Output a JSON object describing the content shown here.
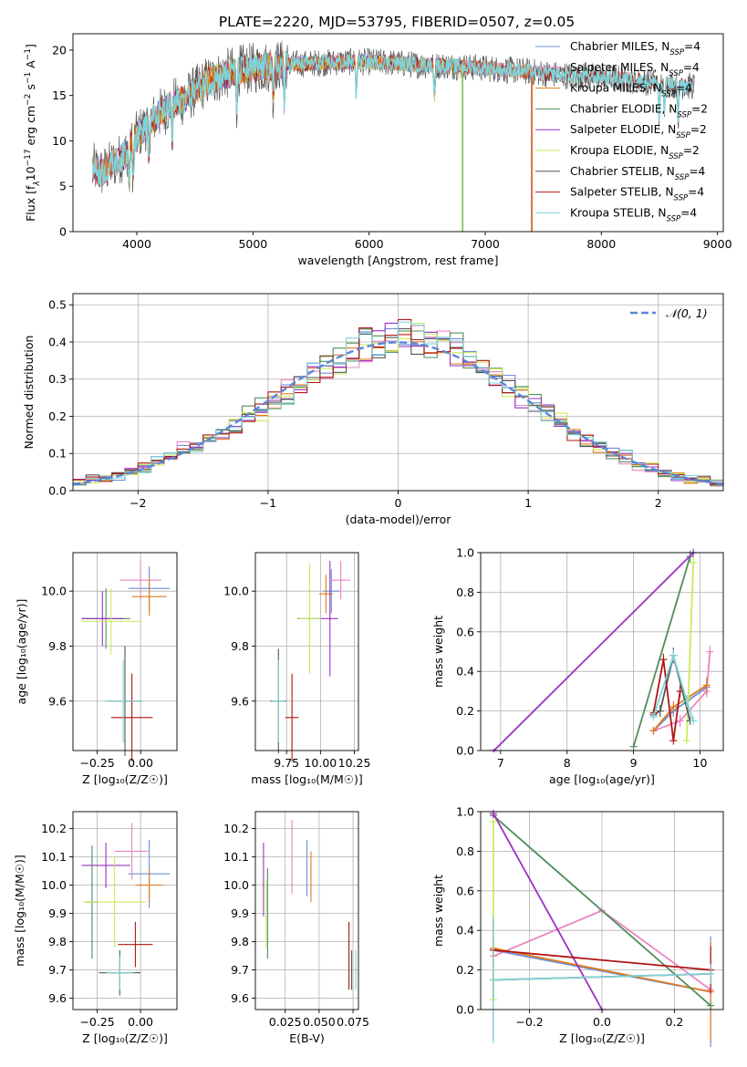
{
  "title": "PLATE=2220, MJD=53795, FIBERID=0507, z=0.05",
  "colors": {
    "ChabrierMILES": "#6b8fd6",
    "SalpeterMILES": "#e985c1",
    "KroupaMILES": "#e07b1f",
    "ChabrierELODIE": "#4f8f5c",
    "SalpeterELODIE": "#9a31c4",
    "KroupaELODIE": "#c9ec5a",
    "ChabrierSTELIB": "#555555",
    "SalpeterSTELIB": "#b01515",
    "KroupaSTELIB": "#7fd3d8",
    "normal": "#5b86d9"
  },
  "legend_models": [
    {
      "key": "ChabrierMILES",
      "label": "Chabrier MILES, N",
      "sub": "SSP",
      "suffix": "=4"
    },
    {
      "key": "SalpeterMILES",
      "label": "Salpeter MILES, N",
      "sub": "SSP",
      "suffix": "=4"
    },
    {
      "key": "KroupaMILES",
      "label": "Kroupa MILES, N",
      "sub": "SSP",
      "suffix": "=4"
    },
    {
      "key": "ChabrierELODIE",
      "label": "Chabrier ELODIE, N",
      "sub": "SSP",
      "suffix": "=2"
    },
    {
      "key": "SalpeterELODIE",
      "label": "Salpeter ELODIE, N",
      "sub": "SSP",
      "suffix": "=2"
    },
    {
      "key": "KroupaELODIE",
      "label": "Kroupa ELODIE, N",
      "sub": "SSP",
      "suffix": "=2"
    },
    {
      "key": "ChabrierSTELIB",
      "label": "Chabrier STELIB, N",
      "sub": "SSP",
      "suffix": "=4"
    },
    {
      "key": "SalpeterSTELIB",
      "label": "Salpeter STELIB, N",
      "sub": "SSP",
      "suffix": "=4"
    },
    {
      "key": "KroupaSTELIB",
      "label": "Kroupa STELIB, N",
      "sub": "SSP",
      "suffix": "=4"
    }
  ],
  "chart_data": [
    {
      "id": "spectrum",
      "type": "line",
      "xlabel": "wavelength [Angstrom, rest frame]",
      "ylabel": "Flux [f",
      "ylabel_parts": [
        "Flux [f",
        "λ",
        "10",
        "−17",
        " erg cm",
        "−2",
        " s",
        "−1",
        " A",
        "−1",
        "]"
      ],
      "xlim": [
        3450,
        9050
      ],
      "ylim": [
        0,
        21.8
      ],
      "xticks": [
        4000,
        5000,
        6000,
        7000,
        8000,
        9000
      ],
      "yticks": [
        0,
        5,
        10,
        15,
        20
      ],
      "grid": false,
      "legend": "top-right",
      "continuum": {
        "x": [
          3620,
          3700,
          3800,
          3900,
          4000,
          4100,
          4200,
          4300,
          4400,
          4500,
          4600,
          4700,
          4800,
          4900,
          5000,
          5200,
          5400,
          5600,
          5800,
          6000,
          6200,
          6400,
          6600,
          6800,
          7000,
          7200,
          7400,
          7600,
          7800,
          8000,
          8200,
          8400,
          8600,
          8800
        ],
        "y": [
          7,
          6.5,
          7.5,
          8.5,
          10.5,
          12,
          13,
          14,
          14.5,
          15.5,
          16.5,
          17,
          17.5,
          17.8,
          18,
          18.3,
          18.5,
          18.6,
          18.7,
          18.7,
          18.6,
          18.4,
          18.3,
          18.2,
          18.0,
          17.8,
          17.6,
          17.3,
          17.1,
          17.0,
          16.8,
          16.5,
          16.2,
          16.0
        ]
      },
      "absorption_lines": [
        3934,
        3968,
        4102,
        4304,
        4861,
        5175,
        5270,
        5890,
        6563,
        8498,
        8542,
        8662
      ],
      "noise": 1.2,
      "series_ranges": [
        {
          "key": "ChabrierMILES",
          "x": [
            3620,
            7400
          ]
        },
        {
          "key": "SalpeterMILES",
          "x": [
            3620,
            7400
          ]
        },
        {
          "key": "KroupaMILES",
          "x": [
            3620,
            7400
          ]
        },
        {
          "key": "ChabrierELODIE",
          "x": [
            3900,
            6800
          ]
        },
        {
          "key": "SalpeterELODIE",
          "x": [
            3900,
            6800
          ]
        },
        {
          "key": "KroupaELODIE",
          "x": [
            3900,
            6800
          ]
        },
        {
          "key": "ChabrierSTELIB",
          "x": [
            3620,
            8800
          ]
        },
        {
          "key": "SalpeterSTELIB",
          "x": [
            3620,
            8800
          ]
        },
        {
          "key": "KroupaSTELIB",
          "x": [
            3620,
            8800
          ]
        }
      ]
    },
    {
      "id": "residual_hist",
      "type": "step",
      "xlabel": "(data-model)/error",
      "ylabel": "Normed distribution",
      "xlim": [
        -2.5,
        2.5
      ],
      "ylim": [
        0,
        0.53
      ],
      "xticks": [
        -2,
        -1,
        0,
        1,
        2
      ],
      "yticks": [
        0.0,
        0.1,
        0.2,
        0.3,
        0.4,
        0.5
      ],
      "grid": true,
      "legend": "top-right",
      "normal_label": "𝒩(0, 1)",
      "bin_edges_start": -2.5,
      "bin_width": 0.1,
      "base_hist": [
        0.022,
        0.03,
        0.03,
        0.04,
        0.05,
        0.06,
        0.08,
        0.09,
        0.11,
        0.12,
        0.14,
        0.16,
        0.18,
        0.2,
        0.22,
        0.25,
        0.27,
        0.29,
        0.31,
        0.33,
        0.35,
        0.37,
        0.39,
        0.4,
        0.41,
        0.42,
        0.41,
        0.4,
        0.39,
        0.38,
        0.36,
        0.33,
        0.31,
        0.28,
        0.26,
        0.23,
        0.21,
        0.18,
        0.16,
        0.14,
        0.12,
        0.1,
        0.09,
        0.07,
        0.06,
        0.05,
        0.04,
        0.03,
        0.03,
        0.022
      ],
      "series_keys": [
        "ChabrierMILES",
        "SalpeterMILES",
        "KroupaMILES",
        "ChabrierELODIE",
        "SalpeterELODIE",
        "KroupaELODIE",
        "ChabrierSTELIB",
        "SalpeterSTELIB",
        "KroupaSTELIB"
      ]
    },
    {
      "id": "age_vs_Z",
      "type": "errorbar",
      "xlabel": "Z [log₁₀(Z/Z☉)]",
      "ylabel": "age  [log₁₀(age/yr)]",
      "xlim": [
        -0.39,
        0.21
      ],
      "ylim": [
        9.42,
        10.14
      ],
      "xticks": [
        -0.25,
        0.0
      ],
      "xtick_labels": [
        "−0.25",
        "0.00"
      ],
      "yticks": [
        9.6,
        9.8,
        10.0
      ],
      "grid": true,
      "points": [
        {
          "key": "ChabrierMILES",
          "x": 0.05,
          "y": 10.01,
          "xerr": 0.12,
          "yerr": 0.08
        },
        {
          "key": "SalpeterMILES",
          "x": 0.0,
          "y": 10.04,
          "xerr": 0.12,
          "yerr": 0.07
        },
        {
          "key": "KroupaMILES",
          "x": 0.05,
          "y": 9.98,
          "xerr": 0.1,
          "yerr": 0.07
        },
        {
          "key": "ChabrierELODIE",
          "x": -0.2,
          "y": 9.9,
          "xerr": 0.14,
          "yerr": 0.11
        },
        {
          "key": "SalpeterELODIE",
          "x": -0.22,
          "y": 9.9,
          "xerr": 0.12,
          "yerr": 0.1
        },
        {
          "key": "KroupaELODIE",
          "x": -0.17,
          "y": 9.89,
          "xerr": 0.17,
          "yerr": 0.12
        },
        {
          "key": "ChabrierSTELIB",
          "x": -0.09,
          "y": 9.6,
          "xerr": 0.1,
          "yerr": 0.2
        },
        {
          "key": "SalpeterSTELIB",
          "x": -0.05,
          "y": 9.54,
          "xerr": 0.12,
          "yerr": 0.16
        },
        {
          "key": "KroupaSTELIB",
          "x": -0.1,
          "y": 9.6,
          "xerr": 0.11,
          "yerr": 0.15
        }
      ]
    },
    {
      "id": "age_vs_mass",
      "type": "errorbar",
      "xlabel": "mass [log₁₀(M/M☉)]",
      "ylabel": "",
      "xlim": [
        9.52,
        10.28
      ],
      "ylim": [
        9.42,
        10.14
      ],
      "xticks": [
        9.75,
        10.0,
        10.25
      ],
      "xtick_labels": [
        "9.75",
        "10.00",
        "10.25"
      ],
      "yticks": [
        9.6,
        9.8,
        10.0
      ],
      "grid": true,
      "points": [
        {
          "key": "ChabrierMILES",
          "x": 10.08,
          "y": 10.0,
          "xerr": 0.06,
          "yerr": 0.08
        },
        {
          "key": "SalpeterMILES",
          "x": 10.15,
          "y": 10.04,
          "xerr": 0.07,
          "yerr": 0.07
        },
        {
          "key": "KroupaMILES",
          "x": 10.04,
          "y": 9.99,
          "xerr": 0.05,
          "yerr": 0.07
        },
        {
          "key": "ChabrierELODIE",
          "x": 9.92,
          "y": 9.9,
          "xerr": 0.09,
          "yerr": 0.11
        },
        {
          "key": "SalpeterELODIE",
          "x": 10.07,
          "y": 9.9,
          "xerr": 0.06,
          "yerr": 0.21
        },
        {
          "key": "KroupaELODIE",
          "x": 9.92,
          "y": 9.9,
          "xerr": 0.08,
          "yerr": 0.2
        },
        {
          "key": "ChabrierSTELIB",
          "x": 9.69,
          "y": 9.6,
          "xerr": 0.06,
          "yerr": 0.19
        },
        {
          "key": "SalpeterSTELIB",
          "x": 9.79,
          "y": 9.54,
          "xerr": 0.05,
          "yerr": 0.16
        },
        {
          "key": "KroupaSTELIB",
          "x": 9.69,
          "y": 9.6,
          "xerr": 0.05,
          "yerr": 0.15
        }
      ]
    },
    {
      "id": "mass_weight_vs_age",
      "type": "line",
      "xlabel": "age  [log₁₀(age/yr)]",
      "ylabel": "mass weight",
      "xlim": [
        6.7,
        10.35
      ],
      "ylim": [
        0.0,
        1.0
      ],
      "xticks": [
        7,
        8,
        9,
        10
      ],
      "yticks": [
        0.0,
        0.2,
        0.4,
        0.6,
        0.8,
        1.0
      ],
      "grid": true,
      "series": [
        {
          "key": "ChabrierMILES",
          "x": [
            9.3,
            9.6,
            10.1
          ],
          "y": [
            0.1,
            0.2,
            0.32
          ],
          "yerr": [
            0.02,
            0.03,
            0.04
          ]
        },
        {
          "key": "SalpeterMILES",
          "x": [
            9.3,
            9.7,
            10.1,
            10.15
          ],
          "y": [
            0.1,
            0.15,
            0.3,
            0.5
          ],
          "yerr": [
            0.02,
            0.03,
            0.03,
            0.03
          ]
        },
        {
          "key": "KroupaMILES",
          "x": [
            9.3,
            9.6,
            10.1
          ],
          "y": [
            0.1,
            0.22,
            0.33
          ],
          "yerr": [
            0.02,
            0.03,
            0.04
          ]
        },
        {
          "key": "ChabrierELODIE",
          "x": [
            9.0,
            9.85
          ],
          "y": [
            0.02,
            0.98
          ],
          "yerr": [
            0.02,
            0.03
          ]
        },
        {
          "key": "SalpeterELODIE",
          "x": [
            6.9,
            9.9
          ],
          "y": [
            0.0,
            1.0
          ],
          "yerr": [
            0.01,
            0.02
          ]
        },
        {
          "key": "KroupaELODIE",
          "x": [
            9.8,
            9.9
          ],
          "y": [
            0.05,
            0.95
          ],
          "yerr": [
            0.02,
            0.03
          ]
        },
        {
          "key": "ChabrierSTELIB",
          "x": [
            9.3,
            9.4,
            9.6,
            9.85
          ],
          "y": [
            0.18,
            0.2,
            0.48,
            0.15
          ],
          "yerr": [
            0.02,
            0.03,
            0.04,
            0.02
          ]
        },
        {
          "key": "SalpeterSTELIB",
          "x": [
            9.3,
            9.45,
            9.6,
            9.7
          ],
          "y": [
            0.19,
            0.46,
            0.05,
            0.3
          ],
          "yerr": [
            0.02,
            0.03,
            0.02,
            0.03
          ]
        },
        {
          "key": "KroupaSTELIB",
          "x": [
            9.3,
            9.6,
            9.8,
            9.9
          ],
          "y": [
            0.17,
            0.48,
            0.25,
            0.15
          ],
          "yerr": [
            0.02,
            0.03,
            0.03,
            0.02
          ]
        }
      ]
    },
    {
      "id": "mass_vs_Z",
      "type": "errorbar",
      "xlabel": "Z [log₁₀(Z/Z☉)]",
      "ylabel": "mass [log₁₀(M/M☉)]",
      "xlim": [
        -0.39,
        0.21
      ],
      "ylim": [
        9.56,
        10.26
      ],
      "xticks": [
        -0.25,
        0.0
      ],
      "xtick_labels": [
        "−0.25",
        "0.00"
      ],
      "yticks": [
        9.6,
        9.7,
        9.8,
        9.9,
        10.0,
        10.1,
        10.2
      ],
      "grid": true,
      "points": [
        {
          "key": "ChabrierMILES",
          "x": 0.05,
          "y": 10.04,
          "xerr": 0.12,
          "yerr": 0.12
        },
        {
          "key": "SalpeterMILES",
          "x": -0.05,
          "y": 10.12,
          "xerr": 0.1,
          "yerr": 0.1
        },
        {
          "key": "KroupaMILES",
          "x": 0.05,
          "y": 10.0,
          "xerr": 0.08,
          "yerr": 0.06
        },
        {
          "key": "ChabrierELODIE",
          "x": -0.28,
          "y": 9.94,
          "xerr": 0.04,
          "yerr": 0.2
        },
        {
          "key": "SalpeterELODIE",
          "x": -0.2,
          "y": 10.07,
          "xerr": 0.14,
          "yerr": 0.08
        },
        {
          "key": "KroupaELODIE",
          "x": -0.15,
          "y": 9.94,
          "xerr": 0.18,
          "yerr": 0.16
        },
        {
          "key": "ChabrierSTELIB",
          "x": -0.12,
          "y": 9.69,
          "xerr": 0.12,
          "yerr": 0.08
        },
        {
          "key": "SalpeterSTELIB",
          "x": -0.03,
          "y": 9.79,
          "xerr": 0.1,
          "yerr": 0.08
        },
        {
          "key": "KroupaSTELIB",
          "x": -0.12,
          "y": 9.69,
          "xerr": 0.08,
          "yerr": 0.06
        }
      ]
    },
    {
      "id": "mass_vs_ebv",
      "type": "errorbar",
      "xlabel": "E(B-V)",
      "ylabel": "",
      "xlim": [
        0.003,
        0.079
      ],
      "ylim": [
        9.56,
        10.26
      ],
      "xticks": [
        0.025,
        0.05,
        0.075
      ],
      "xtick_labels": [
        "0.025",
        "0.050",
        "0.075"
      ],
      "yticks": [
        9.6,
        9.7,
        9.8,
        9.9,
        10.0,
        10.1,
        10.2
      ],
      "grid": true,
      "points": [
        {
          "key": "ChabrierMILES",
          "x": 0.041,
          "y": 10.06,
          "xerr": 0.0,
          "yerr": 0.1
        },
        {
          "key": "SalpeterMILES",
          "x": 0.03,
          "y": 10.1,
          "xerr": 0.0,
          "yerr": 0.13
        },
        {
          "key": "KroupaMILES",
          "x": 0.044,
          "y": 10.03,
          "xerr": 0.0,
          "yerr": 0.09
        },
        {
          "key": "ChabrierELODIE",
          "x": 0.012,
          "y": 9.9,
          "xerr": 0.0,
          "yerr": 0.16
        },
        {
          "key": "SalpeterELODIE",
          "x": 0.009,
          "y": 10.02,
          "xerr": 0.0,
          "yerr": 0.13
        },
        {
          "key": "KroupaELODIE",
          "x": 0.011,
          "y": 9.9,
          "xerr": 0.0,
          "yerr": 0.12
        },
        {
          "key": "ChabrierSTELIB",
          "x": 0.074,
          "y": 9.7,
          "xerr": 0.0,
          "yerr": 0.07
        },
        {
          "key": "SalpeterSTELIB",
          "x": 0.072,
          "y": 9.75,
          "xerr": 0.0,
          "yerr": 0.12
        },
        {
          "key": "KroupaSTELIB",
          "x": 0.077,
          "y": 9.7,
          "xerr": 0.0,
          "yerr": 0.07
        }
      ]
    },
    {
      "id": "mass_weight_vs_Z",
      "type": "line",
      "xlabel": "Z [log₁₀(Z/Z☉)]",
      "ylabel": "mass weight",
      "xlim": [
        -0.335,
        0.335
      ],
      "ylim": [
        0.0,
        1.0
      ],
      "xticks": [
        -0.2,
        0.0,
        0.2
      ],
      "xtick_labels": [
        "−0.2",
        "0.0",
        "0.2"
      ],
      "yticks": [
        0.0,
        0.2,
        0.4,
        0.6,
        0.8,
        1.0
      ],
      "grid": true,
      "series": [
        {
          "key": "ChabrierMILES",
          "x": [
            -0.3,
            0.3
          ],
          "y": [
            0.3,
            0.09
          ],
          "yerr": [
            0.18,
            0.28
          ]
        },
        {
          "key": "SalpeterMILES",
          "x": [
            -0.3,
            0.0,
            0.3
          ],
          "y": [
            0.27,
            0.5,
            0.1
          ],
          "yerr": [
            0.05,
            0.02,
            0.05
          ]
        },
        {
          "key": "KroupaMILES",
          "x": [
            -0.3,
            0.3
          ],
          "y": [
            0.31,
            0.09
          ],
          "yerr": [
            0.05,
            0.25
          ]
        },
        {
          "key": "ChabrierELODIE",
          "x": [
            -0.3,
            0.3
          ],
          "y": [
            0.98,
            0.02
          ],
          "yerr": [
            0.02,
            0.02
          ]
        },
        {
          "key": "SalpeterELODIE",
          "x": [
            -0.3,
            0.0
          ],
          "y": [
            0.99,
            0.0
          ],
          "yerr": [
            0.02,
            0.01
          ]
        },
        {
          "key": "KroupaELODIE",
          "x": [
            -0.3,
            -0.3
          ],
          "y": [
            0.95,
            0.05
          ],
          "yerr": [
            0.02,
            0.02
          ]
        },
        {
          "key": "ChabrierSTELIB",
          "x": [
            -0.3,
            0.3
          ],
          "y": [
            0.15,
            0.18
          ],
          "yerr": [
            0.3,
            0.05
          ]
        },
        {
          "key": "SalpeterSTELIB",
          "x": [
            -0.3,
            0.3
          ],
          "y": [
            0.3,
            0.2
          ],
          "yerr": [
            0.03,
            0.12
          ]
        },
        {
          "key": "KroupaSTELIB",
          "x": [
            -0.3,
            0.3
          ],
          "y": [
            0.15,
            0.18
          ],
          "yerr": [
            0.32,
            0.05
          ]
        }
      ]
    }
  ]
}
